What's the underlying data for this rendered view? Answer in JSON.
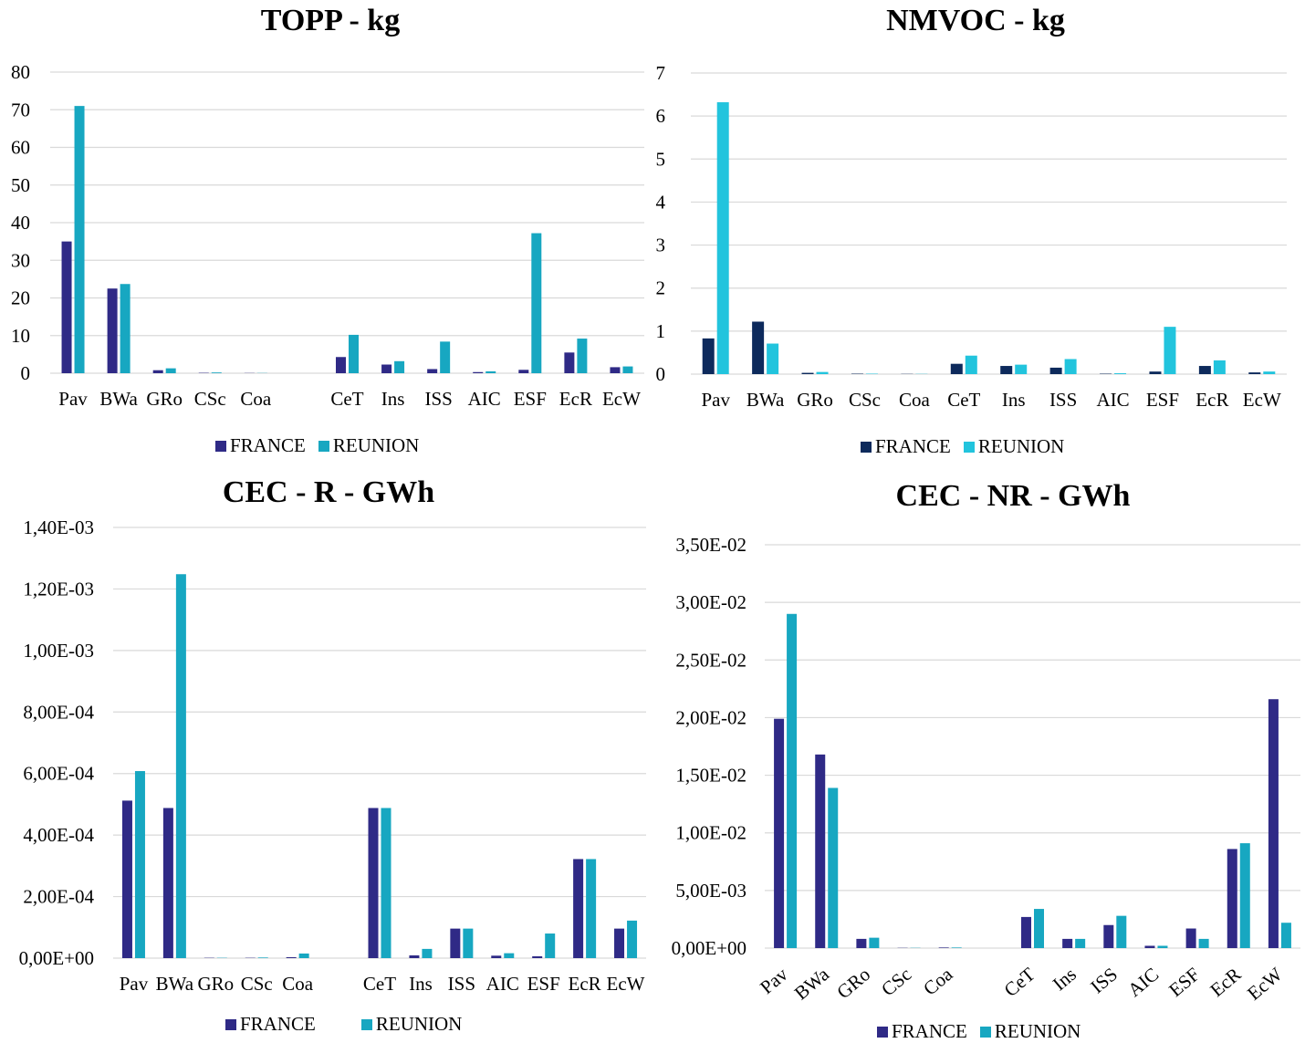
{
  "colors": {
    "france": "#2f2a86",
    "reunion": "#17a7c1",
    "france_dark": "#0d2a5c",
    "reunion_light": "#22c4dd",
    "grid": "#d9d9d9"
  },
  "chart_data": [
    {
      "type": "bar",
      "title": "TOPP - kg",
      "categories": [
        "Pav",
        "BWa",
        "GRo",
        "CSc",
        "Coa",
        "",
        "CeT",
        "Ins",
        "ISS",
        "AIC",
        "ESF",
        "EcR",
        "EcW"
      ],
      "series": [
        {
          "name": "FRANCE",
          "values": [
            35,
            22.5,
            0.8,
            0.1,
            0.05,
            0,
            4.3,
            2.3,
            1.1,
            0.3,
            0.9,
            5.5,
            1.6
          ]
        },
        {
          "name": "REUNION",
          "values": [
            71,
            23.7,
            1.3,
            0.2,
            0.05,
            0,
            10.2,
            3.2,
            8.4,
            0.5,
            37.2,
            9.2,
            1.8
          ]
        }
      ],
      "yticks": [
        "0",
        "10",
        "20",
        "30",
        "40",
        "50",
        "60",
        "70",
        "80"
      ],
      "ylim": [
        0,
        80
      ],
      "legend": "bottom"
    },
    {
      "type": "bar",
      "title": "NMVOC - kg",
      "categories": [
        "Pav",
        "BWa",
        "GRo",
        "CSc",
        "Coa",
        "CeT",
        "Ins",
        "ISS",
        "AIC",
        "ESF",
        "EcR",
        "EcW"
      ],
      "series": [
        {
          "name": "FRANCE",
          "values": [
            0.83,
            1.22,
            0.03,
            0.01,
            0.005,
            0.24,
            0.19,
            0.15,
            0.01,
            0.06,
            0.19,
            0.04
          ]
        },
        {
          "name": "REUNION",
          "values": [
            6.32,
            0.71,
            0.05,
            0.01,
            0.005,
            0.43,
            0.22,
            0.35,
            0.02,
            1.1,
            0.32,
            0.06
          ]
        }
      ],
      "yticks": [
        "0",
        "1",
        "2",
        "3",
        "4",
        "5",
        "6",
        "7"
      ],
      "ylim": [
        0,
        7
      ],
      "legend": "bottom"
    },
    {
      "type": "bar",
      "title": "CEC - R - GWh",
      "categories": [
        "Pav",
        "BWa",
        "GRo",
        "CSc",
        "Coa",
        "",
        "CeT",
        "Ins",
        "ISS",
        "AIC",
        "ESF",
        "EcR",
        "EcW"
      ],
      "series": [
        {
          "name": "FRANCE",
          "values": [
            0.000512,
            0.000488,
            1e-06,
            1e-06,
            3e-06,
            0,
            0.000488,
            9e-06,
            9.6e-05,
            8e-06,
            6e-06,
            0.000322,
            9.6e-05
          ]
        },
        {
          "name": "REUNION",
          "values": [
            0.000608,
            0.001248,
            1e-06,
            2e-06,
            1.5e-05,
            0,
            0.000488,
            3e-05,
            9.6e-05,
            1.6e-05,
            8e-05,
            0.000322,
            0.000122
          ]
        }
      ],
      "yticks": [
        "0,00E+00",
        "2,00E-04",
        "4,00E-04",
        "6,00E-04",
        "8,00E-04",
        "1,00E-03",
        "1,20E-03",
        "1,40E-03"
      ],
      "ylim": [
        0,
        0.0014
      ],
      "legend": "bottom"
    },
    {
      "type": "bar",
      "title": "CEC - NR - GWh",
      "categories": [
        "Pav",
        "BWa",
        "GRo",
        "CSc",
        "Coa",
        "",
        "CeT",
        "Ins",
        "ISS",
        "AIC",
        "ESF",
        "EcR",
        "EcW"
      ],
      "series": [
        {
          "name": "FRANCE",
          "values": [
            0.0199,
            0.0168,
            0.0008,
            2e-05,
            5e-05,
            0,
            0.0027,
            0.0008,
            0.002,
            0.0002,
            0.0017,
            0.0086,
            0.0216
          ]
        },
        {
          "name": "REUNION",
          "values": [
            0.029,
            0.0139,
            0.0009,
            2e-05,
            5e-05,
            0,
            0.0034,
            0.0008,
            0.0028,
            0.0002,
            0.0008,
            0.0091,
            0.0022
          ]
        }
      ],
      "yticks": [
        "0,00E+00",
        "5,00E-03",
        "1,00E-02",
        "1,50E-02",
        "2,00E-02",
        "2,50E-02",
        "3,00E-02",
        "3,50E-02"
      ],
      "ylim": [
        0,
        0.035
      ],
      "legend": "bottom"
    }
  ]
}
